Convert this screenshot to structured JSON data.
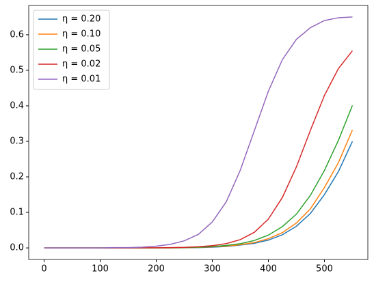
{
  "chart_data": {
    "type": "line",
    "x": [
      0,
      25,
      50,
      75,
      100,
      125,
      150,
      175,
      200,
      225,
      250,
      275,
      300,
      325,
      350,
      375,
      400,
      425,
      450,
      475,
      500,
      525,
      550
    ],
    "series": [
      {
        "name": "η = 0.20",
        "color": "#1f77b4",
        "values": [
          0,
          0,
          0,
          0,
          0,
          0,
          0,
          0,
          0,
          0,
          0.0005,
          0.001,
          0.002,
          0.004,
          0.008,
          0.013,
          0.022,
          0.037,
          0.061,
          0.097,
          0.15,
          0.215,
          0.3
        ]
      },
      {
        "name": "η = 0.10",
        "color": "#ff7f0e",
        "values": [
          0,
          0,
          0,
          0,
          0,
          0,
          0,
          0,
          0,
          0,
          0.0007,
          0.0015,
          0.003,
          0.005,
          0.009,
          0.015,
          0.026,
          0.043,
          0.07,
          0.11,
          0.17,
          0.24,
          0.332
        ]
      },
      {
        "name": "η = 0.05",
        "color": "#2ca02c",
        "values": [
          0,
          0,
          0,
          0,
          0,
          0,
          0,
          0,
          0,
          0.0005,
          0.001,
          0.002,
          0.004,
          0.007,
          0.012,
          0.021,
          0.036,
          0.06,
          0.095,
          0.148,
          0.218,
          0.303,
          0.401
        ]
      },
      {
        "name": "η = 0.02",
        "color": "#d62728",
        "values": [
          0,
          0,
          0,
          0,
          0,
          0,
          0,
          0.0003,
          0.0005,
          0.0009,
          0.0016,
          0.0032,
          0.0063,
          0.0122,
          0.0234,
          0.044,
          0.081,
          0.142,
          0.228,
          0.331,
          0.429,
          0.505,
          0.555
        ]
      },
      {
        "name": "η = 0.01",
        "color": "#9467bd",
        "values": [
          0,
          0,
          0,
          0,
          0,
          0.001,
          0.001,
          0.002,
          0.005,
          0.01,
          0.02,
          0.038,
          0.073,
          0.13,
          0.219,
          0.33,
          0.441,
          0.53,
          0.587,
          0.62,
          0.64,
          0.648,
          0.65
        ]
      }
    ],
    "xlim": [
      -27.5,
      577.5
    ],
    "xticks": [
      0,
      100,
      200,
      300,
      400,
      500
    ],
    "ylim": [
      -0.0325,
      0.6825
    ],
    "yticks": [
      {
        "value": 0,
        "label": "0.0"
      },
      0.1,
      0.2,
      0.3,
      0.4,
      0.5,
      0.6
    ],
    "grid": false,
    "legend": "upper left"
  }
}
